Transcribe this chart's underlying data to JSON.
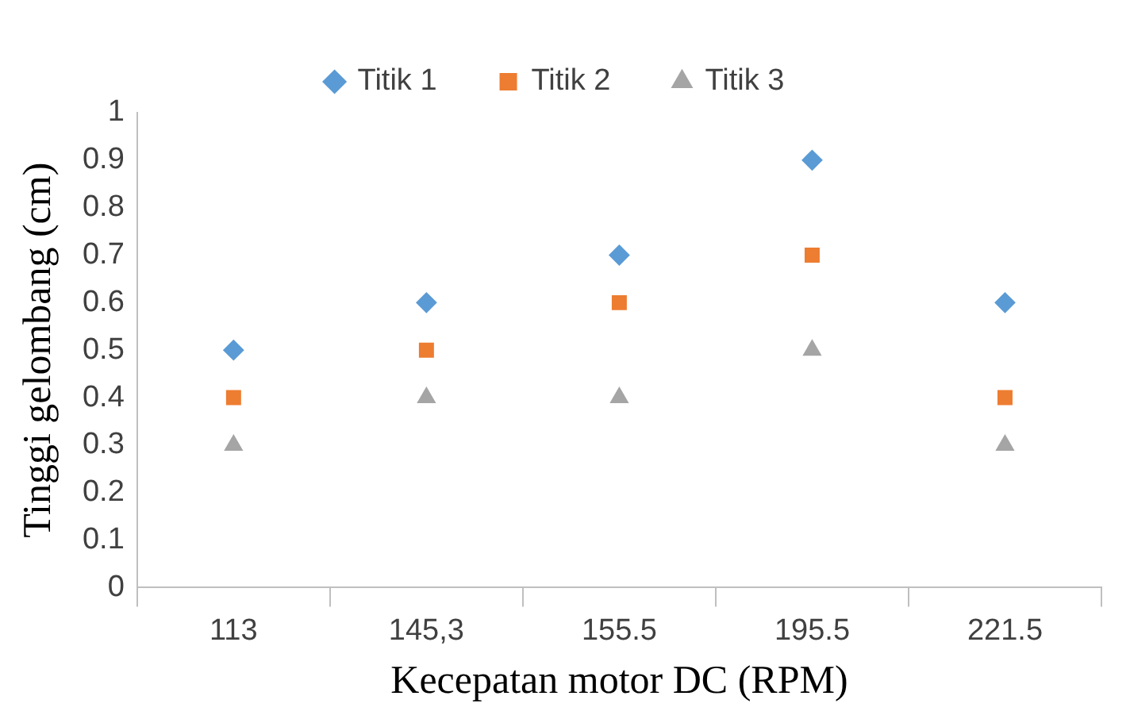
{
  "chart_data": {
    "type": "scatter",
    "xlabel": "Kecepatan motor DC (RPM)",
    "ylabel": "Tinggi gelombang (cm)",
    "categories": [
      "113",
      "145,3",
      "155.5",
      "195.5",
      "221.5"
    ],
    "series": [
      {
        "name": "Titik 1",
        "color": "#5b9bd5",
        "marker": "diamond",
        "values": [
          0.5,
          0.6,
          0.7,
          0.9,
          0.6
        ]
      },
      {
        "name": "Titik 2",
        "color": "#ed7d31",
        "marker": "square",
        "values": [
          0.4,
          0.5,
          0.6,
          0.7,
          0.4
        ]
      },
      {
        "name": "Titik 3",
        "color": "#a5a5a5",
        "marker": "triangle",
        "values": [
          0.3,
          0.4,
          0.4,
          0.5,
          0.3
        ]
      }
    ],
    "ylim": [
      0,
      1
    ],
    "yticks": [
      0,
      0.1,
      0.2,
      0.3,
      0.4,
      0.5,
      0.6,
      0.7,
      0.8,
      0.9,
      1
    ],
    "grid": false,
    "legend": "top"
  }
}
